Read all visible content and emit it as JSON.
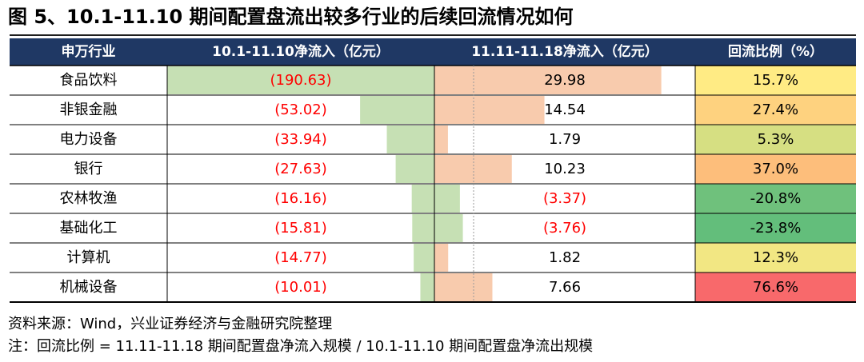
{
  "title": "图 5、10.1-11.10 期间配置盘流出较多行业的后续回流情况如何",
  "chart_data": {
    "type": "table",
    "columns": [
      "申万行业",
      "10.1-11.10净流入（亿元）",
      "11.11-11.18净流入（亿元）",
      "回流比例（%）"
    ],
    "rows": [
      {
        "industry": "食品饮料",
        "outflow": -190.63,
        "outflow_label": "(190.63)",
        "inflow": 29.98,
        "inflow_label": "29.98",
        "ratio": 15.7,
        "ratio_label": "15.7%"
      },
      {
        "industry": "非银金融",
        "outflow": -53.02,
        "outflow_label": "(53.02)",
        "inflow": 14.54,
        "inflow_label": "14.54",
        "ratio": 27.4,
        "ratio_label": "27.4%"
      },
      {
        "industry": "电力设备",
        "outflow": -33.94,
        "outflow_label": "(33.94)",
        "inflow": 1.79,
        "inflow_label": "1.79",
        "ratio": 5.3,
        "ratio_label": "5.3%"
      },
      {
        "industry": "银行",
        "outflow": -27.63,
        "outflow_label": "(27.63)",
        "inflow": 10.23,
        "inflow_label": "10.23",
        "ratio": 37.0,
        "ratio_label": "37.0%"
      },
      {
        "industry": "农林牧渔",
        "outflow": -16.16,
        "outflow_label": "(16.16)",
        "inflow": -3.37,
        "inflow_label": "(3.37)",
        "ratio": -20.8,
        "ratio_label": "-20.8%"
      },
      {
        "industry": "基础化工",
        "outflow": -15.81,
        "outflow_label": "(15.81)",
        "inflow": -3.76,
        "inflow_label": "(3.76)",
        "ratio": -23.8,
        "ratio_label": "-23.8%"
      },
      {
        "industry": "计算机",
        "outflow": -14.77,
        "outflow_label": "(14.77)",
        "inflow": 1.82,
        "inflow_label": "1.82",
        "ratio": 12.3,
        "ratio_label": "12.3%"
      },
      {
        "industry": "机械设备",
        "outflow": -10.01,
        "outflow_label": "(10.01)",
        "inflow": 7.66,
        "inflow_label": "7.66",
        "ratio": 76.6,
        "ratio_label": "76.6%"
      }
    ]
  },
  "source": "资料来源：Wind，兴业证券经济与金融研究院整理",
  "note": "注：回流比例 = 11.11-11.18 期间配置盘净流入规模 / 10.1-11.10 期间配置盘净流出规模",
  "colors": {
    "header_bg": "#1f3864",
    "header_text": "#ffffff",
    "outflow_bar": "#c6e0b4",
    "inflow_bar": "#f8cbad",
    "negative_text": "#ff0000",
    "grid": "#000000",
    "ratio_low": "#63be7b",
    "ratio_mid": "#ffeb84",
    "ratio_high": "#f8696b"
  }
}
